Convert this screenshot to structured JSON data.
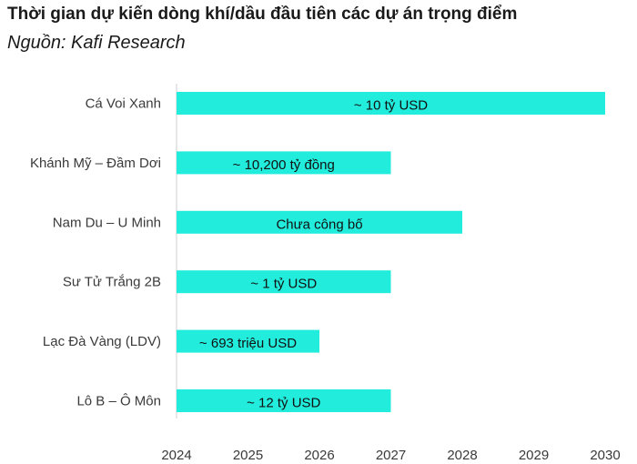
{
  "chart_data": {
    "type": "bar",
    "orientation": "horizontal",
    "title": "Thời gian dự kiến dòng khí/dầu đầu tiên các dự án trọng điểm",
    "subtitle": "Nguồn: Kafi Research",
    "categories": [
      "Cá Voi Xanh",
      "Khánh Mỹ – Đầm Dơi",
      "Nam Du – U Minh",
      "Sư Tử Trắng 2B",
      "Lạc Đà Vàng (LDV)",
      "Lô B – Ô Môn"
    ],
    "start": [
      2024,
      2024,
      2024,
      2024,
      2024,
      2024
    ],
    "end": [
      2030,
      2027,
      2028,
      2027,
      2026,
      2027
    ],
    "bar_labels": [
      "~ 10 tỷ USD",
      "~ 10,200 tỷ đồng",
      "Chưa công bố",
      "~ 1 tỷ USD",
      "~ 693 triệu USD",
      "~ 12 tỷ USD"
    ],
    "xlim": [
      2024,
      2030
    ],
    "xticks": [
      "2024",
      "2025",
      "2026",
      "2027",
      "2028",
      "2029",
      "2030"
    ],
    "grid": false,
    "bar_color": "#22ecdc",
    "axis_color": "#cfcfcf"
  }
}
